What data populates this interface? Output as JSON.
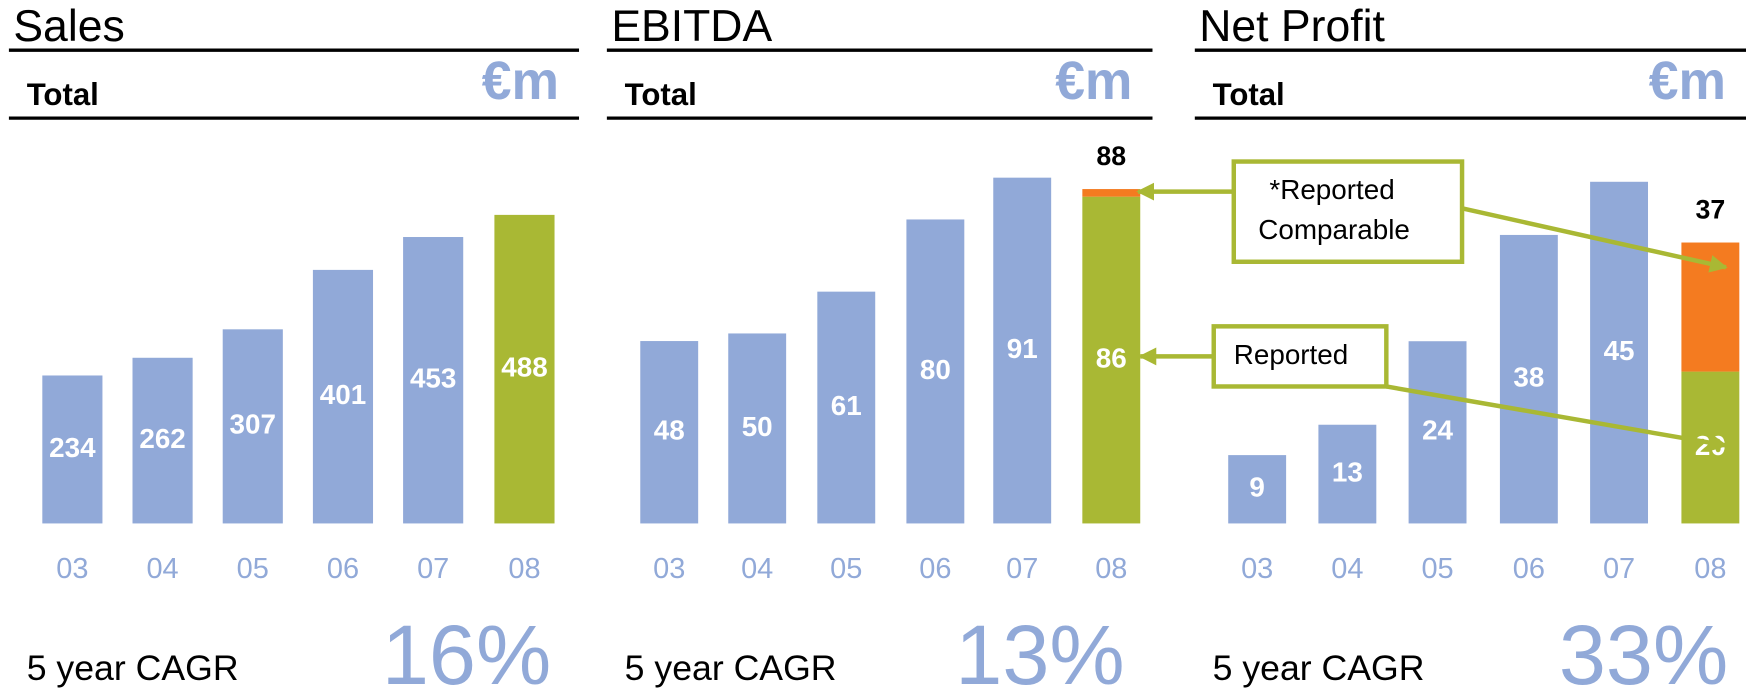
{
  "chart_data": [
    {
      "type": "bar",
      "title": "Sales",
      "subtitle": "Total",
      "unit": "€m",
      "categories": [
        "03",
        "04",
        "05",
        "06",
        "07",
        "08"
      ],
      "series": [
        {
          "color": "#91a9d8",
          "values": [
            234,
            262,
            307,
            401,
            453,
            null
          ],
          "data_labels": true
        },
        {
          "color": "#a9b834",
          "values": [
            null,
            null,
            null,
            null,
            null,
            488
          ],
          "data_labels": true
        }
      ],
      "ylim": [
        0,
        634
      ],
      "cagr_label": "5 year CAGR",
      "cagr": "16%"
    },
    {
      "type": "bar",
      "title": "EBITDA",
      "subtitle": "Total",
      "unit": "€m",
      "categories": [
        "03",
        "04",
        "05",
        "06",
        "07",
        "08"
      ],
      "series": [
        {
          "color": "#91a9d8",
          "values": [
            48,
            50,
            61,
            80,
            91,
            null
          ],
          "data_labels": true
        },
        {
          "color": "#a9b834",
          "values": [
            null,
            null,
            null,
            null,
            null,
            86
          ],
          "data_labels": true
        },
        {
          "color": "#f47b20",
          "values": [
            null,
            null,
            null,
            null,
            null,
            2
          ],
          "data_labels": false
        }
      ],
      "total_label": "88",
      "ylim": [
        0,
        105.5
      ],
      "cagr_label": "5 year CAGR",
      "cagr": "13%"
    },
    {
      "type": "bar",
      "title": "Net Profit",
      "subtitle": "Total",
      "unit": "€m",
      "categories": [
        "03",
        "04",
        "05",
        "06",
        "07",
        "08"
      ],
      "series": [
        {
          "color": "#91a9d8",
          "values": [
            9,
            13,
            24,
            38,
            45,
            null
          ],
          "data_labels": true
        },
        {
          "color": "#a9b834",
          "values": [
            null,
            null,
            null,
            null,
            null,
            20
          ],
          "data_labels": true
        },
        {
          "color": "#f47b20",
          "values": [
            null,
            null,
            null,
            null,
            null,
            17
          ],
          "data_labels": false
        }
      ],
      "total_label": "37",
      "ylim": [
        0,
        52.8
      ],
      "cagr_label": "5 year CAGR",
      "cagr": "33%"
    }
  ],
  "annotations": [
    {
      "lines": [
        "*Reported",
        "Comparable"
      ]
    },
    {
      "lines": [
        "Reported"
      ]
    }
  ]
}
